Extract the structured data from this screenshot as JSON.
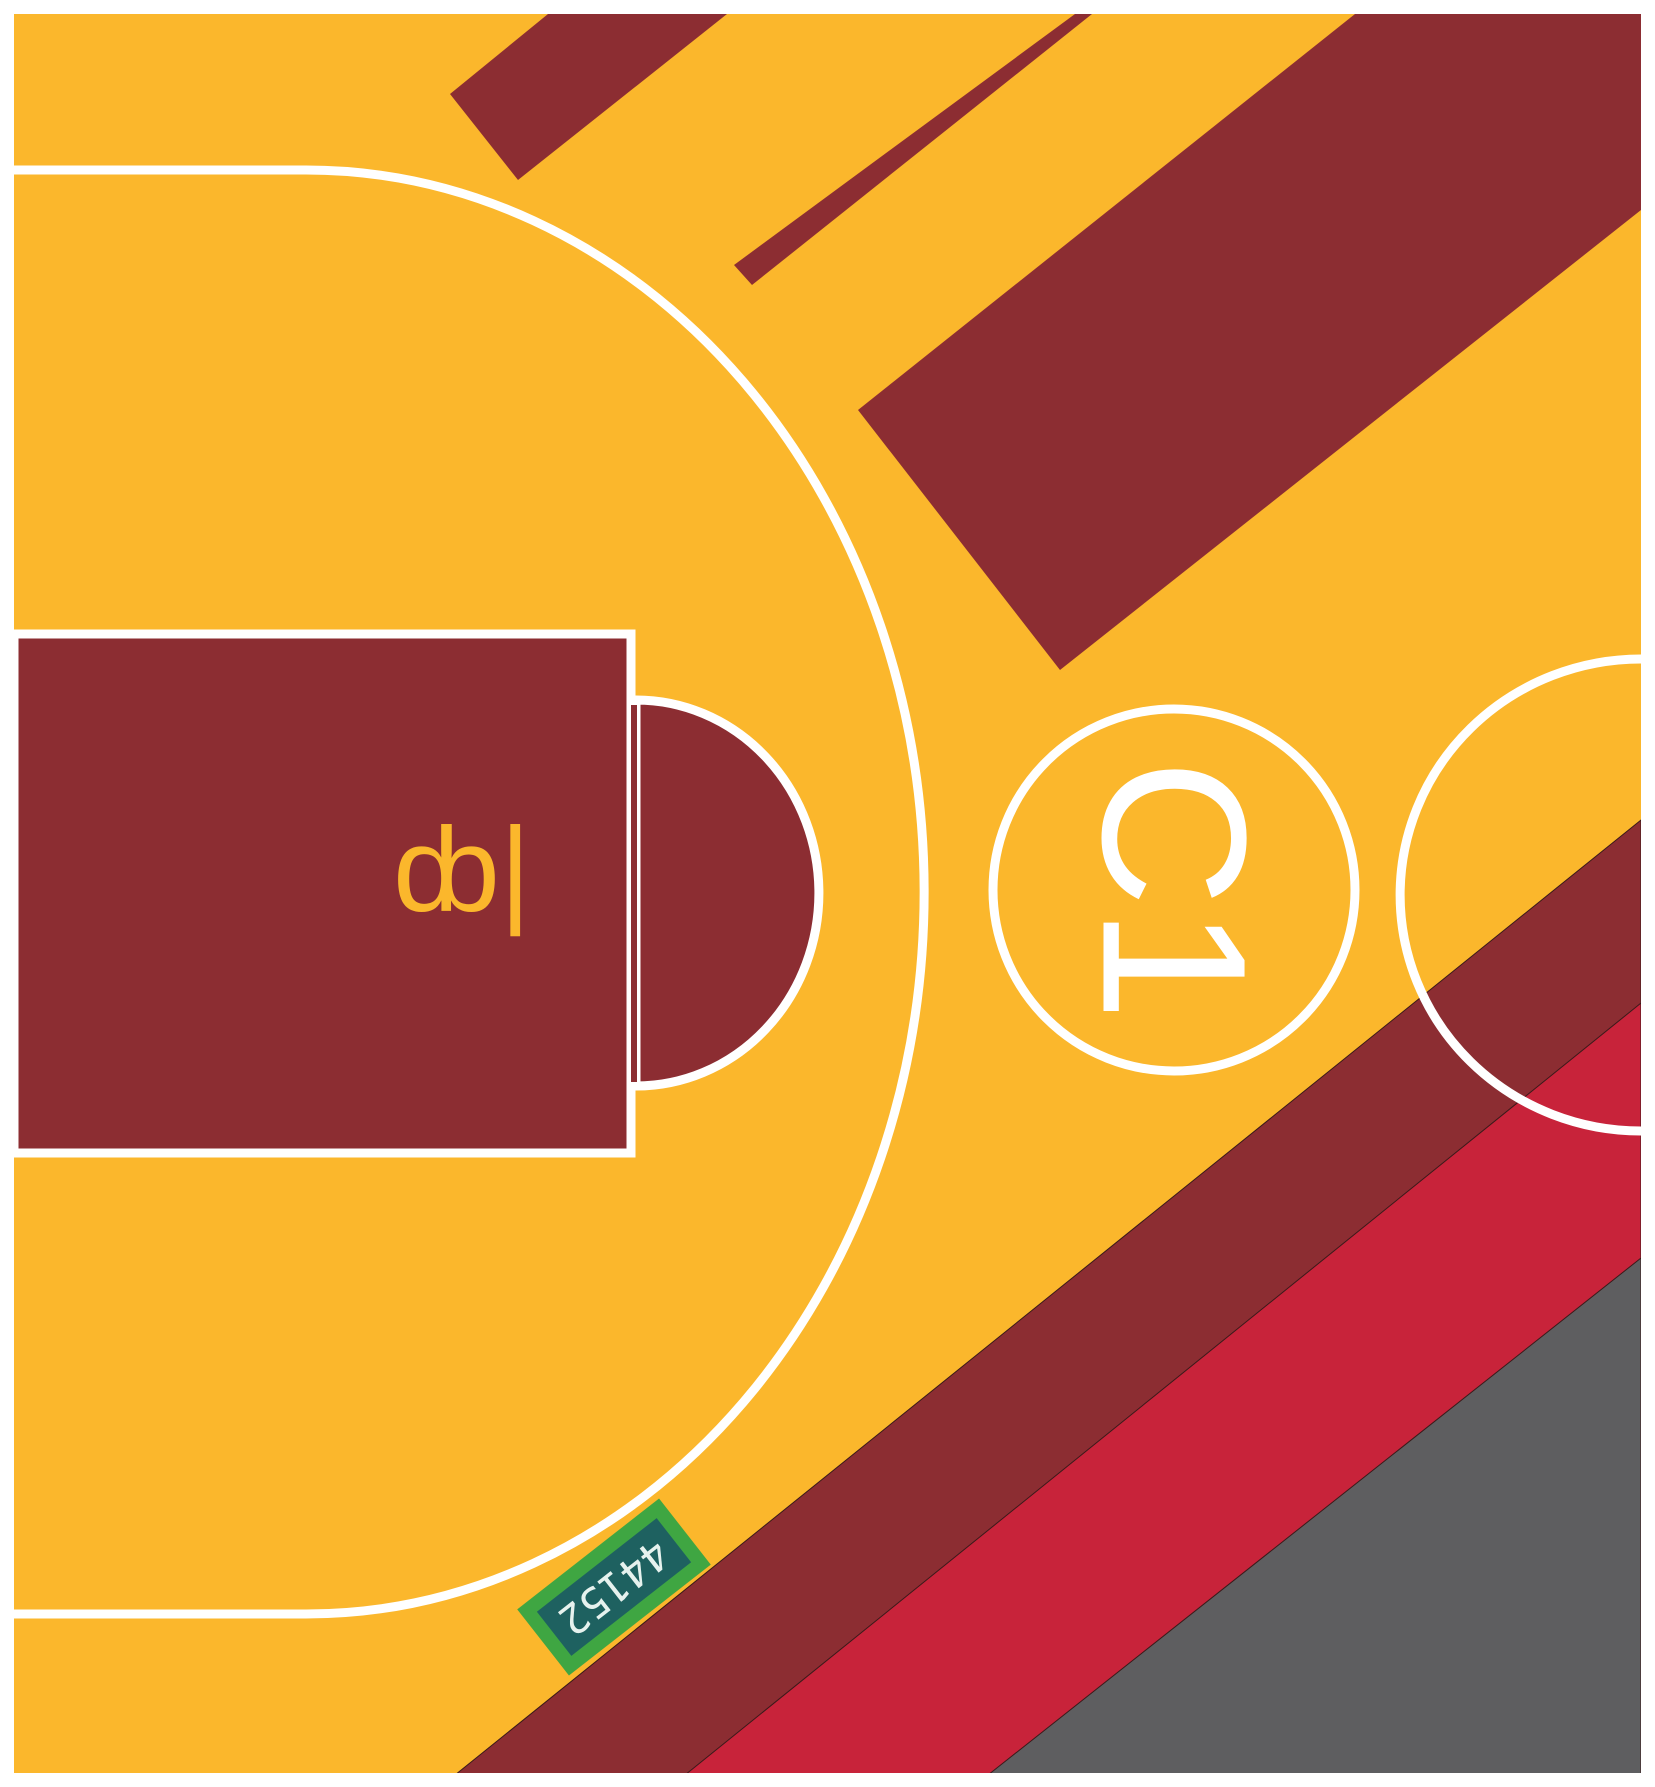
{
  "court": {
    "center_circle_label": "C1",
    "free_throw_marker_label": "ȸ|",
    "tag_label": "44152"
  },
  "colors": {
    "floor": "#FBB72C",
    "dark_red": "#8C2D32",
    "bright_red": "#C8233A",
    "gray": "#5E5E60",
    "line": "#FFFFFF",
    "tag_outer": "#3FA642",
    "tag_inner": "#1E6160",
    "frame": "#FFFFFF"
  }
}
